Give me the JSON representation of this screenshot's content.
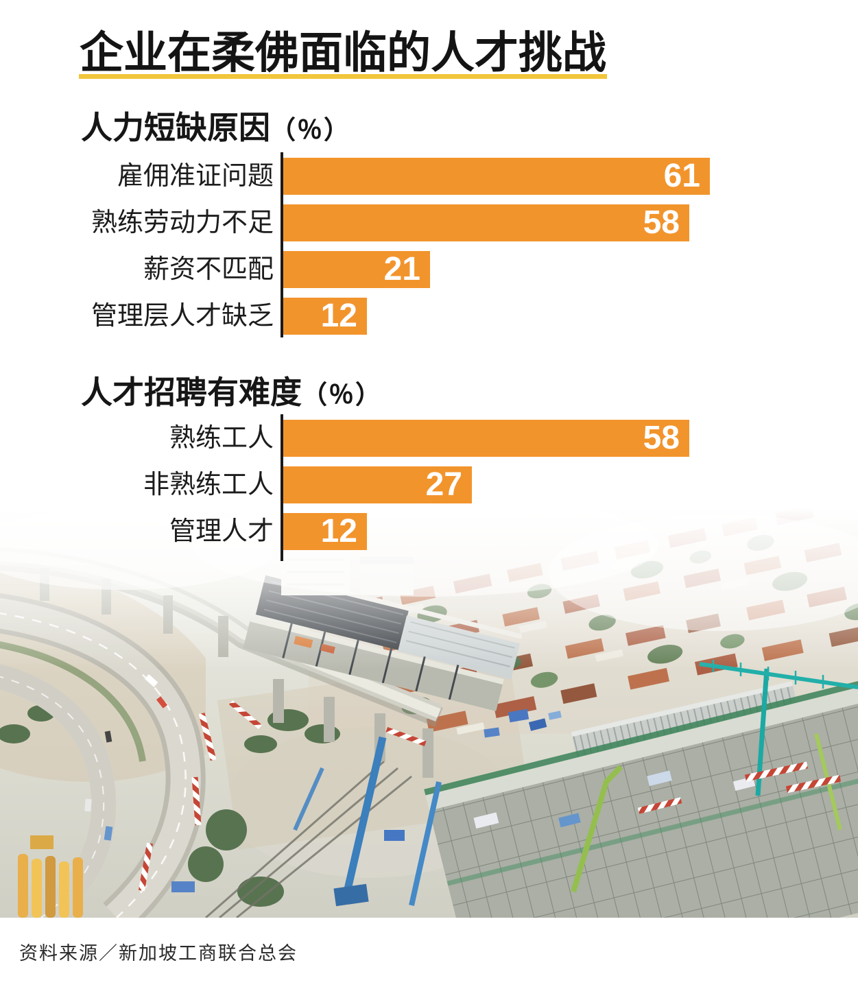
{
  "title": "企业在柔佛面临的人才挑战",
  "source": "资料来源／新加坡工商联合总会",
  "colors": {
    "bar_orange": "#F2942C",
    "rule_gold": "#F2C63C",
    "axis_black": "#1A1A1A",
    "value_text_white": "#FFFFFF",
    "label_text_dark": "#1C1C1C"
  },
  "photo_alt": "柔佛建筑工地航拍图：高架轨道工程、民宅与吊车",
  "chart_data": [
    {
      "type": "bar",
      "orientation": "horizontal",
      "title": "人力短缺原因",
      "unit": "（％）",
      "categories": [
        "雇佣准证问题",
        "熟练劳动力不足",
        "薪资不匹配",
        "管理层人才缺乏"
      ],
      "values": [
        61,
        58,
        21,
        12
      ],
      "xlim": [
        0,
        61
      ],
      "grid": false,
      "value_labels": "inside-end",
      "bar_color": "#F2942C"
    },
    {
      "type": "bar",
      "orientation": "horizontal",
      "title": "人才招聘有难度",
      "unit": "（％）",
      "categories": [
        "熟练工人",
        "非熟练工人",
        "管理人才"
      ],
      "values": [
        58,
        27,
        12
      ],
      "xlim": [
        0,
        61
      ],
      "grid": false,
      "value_labels": "inside-end",
      "bar_color": "#F2942C"
    }
  ]
}
